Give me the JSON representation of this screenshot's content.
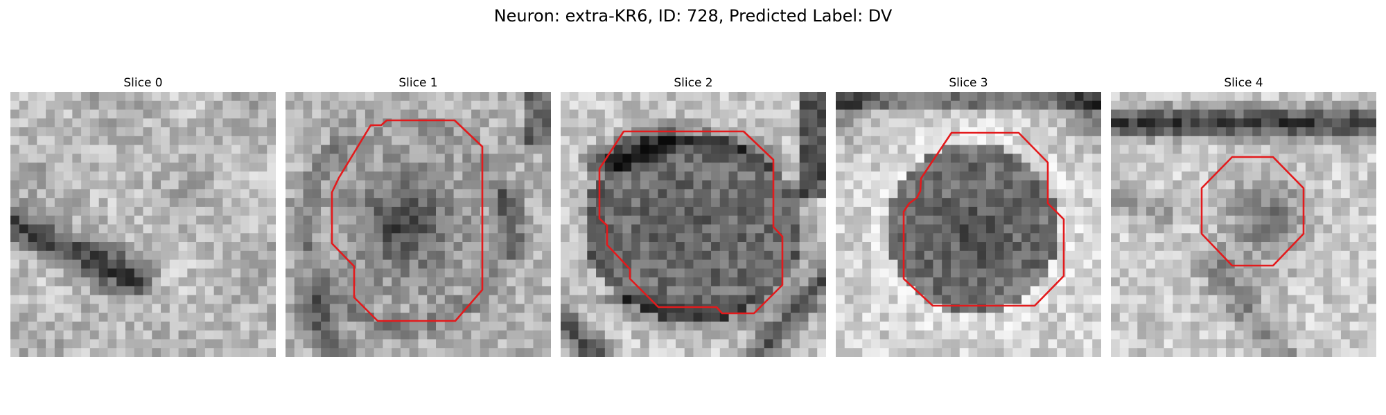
{
  "figure": {
    "title": "Neuron: extra-KR6, ID: 728, Predicted Label: DV",
    "contour_color": "#e31a1c"
  },
  "slices": [
    {
      "title": "Slice 0",
      "has_contour": false
    },
    {
      "title": "Slice 1",
      "has_contour": true
    },
    {
      "title": "Slice 2",
      "has_contour": true
    },
    {
      "title": "Slice 3",
      "has_contour": true
    },
    {
      "title": "Slice 4",
      "has_contour": true
    }
  ]
}
